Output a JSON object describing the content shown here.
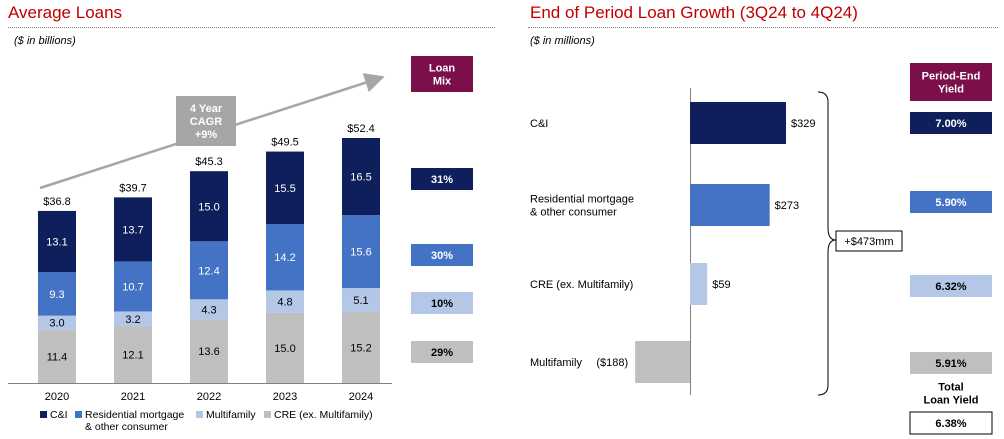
{
  "left": {
    "title": "Average Loans",
    "subtitle": "($ in billions)",
    "cagr_text": [
      "4 Year",
      "CAGR",
      "+9%"
    ],
    "mix_header": [
      "Loan",
      "Mix"
    ],
    "mix_values": [
      {
        "label": "31%",
        "color": "#0f1f5c"
      },
      {
        "label": "30%",
        "color": "#4472c4"
      },
      {
        "label": "10%",
        "color": "#b4c7e7"
      },
      {
        "label": "29%",
        "color": "#bfbfbf"
      }
    ],
    "legend": [
      {
        "label": "C&I",
        "color": "#0f1f5c"
      },
      {
        "label": [
          "Residential mortgage",
          "& other consumer"
        ],
        "color": "#4472c4"
      },
      {
        "label": "Multifamily",
        "color": "#b4c7e7"
      },
      {
        "label": "CRE (ex. Multifamily)",
        "color": "#bfbfbf"
      }
    ]
  },
  "right": {
    "title": "End of Period Loan Growth (3Q24 to 4Q24)",
    "subtitle": "($ in millions)",
    "yield_header": [
      "Period-End",
      "Yield"
    ],
    "total_change": "+$473mm",
    "yields": [
      {
        "label": "7.00%",
        "color": "#0f1f5c",
        "text": "#ffffff"
      },
      {
        "label": "5.90%",
        "color": "#4472c4",
        "text": "#ffffff"
      },
      {
        "label": "6.32%",
        "color": "#b4c7e7",
        "text": "#000000"
      },
      {
        "label": "5.91%",
        "color": "#bfbfbf",
        "text": "#000000"
      }
    ],
    "total_yield_label": [
      "Total",
      "Loan Yield"
    ],
    "total_yield_value": "6.38%"
  },
  "chart_data": [
    {
      "type": "bar",
      "stacked": true,
      "title": "Average Loans",
      "unit": "$ in billions",
      "categories": [
        "2020",
        "2021",
        "2022",
        "2023",
        "2024"
      ],
      "series": [
        {
          "name": "CRE (ex. Multifamily)",
          "color": "#bfbfbf",
          "text_color": "#000000",
          "values": [
            11.4,
            12.1,
            13.6,
            15.0,
            15.2
          ]
        },
        {
          "name": "Multifamily",
          "color": "#b4c7e7",
          "text_color": "#000000",
          "values": [
            3.0,
            3.2,
            4.3,
            4.8,
            5.1
          ]
        },
        {
          "name": "Residential mortgage & other consumer",
          "color": "#4472c4",
          "text_color": "#ffffff",
          "values": [
            9.3,
            10.7,
            12.4,
            14.2,
            15.6
          ]
        },
        {
          "name": "C&I",
          "color": "#0f1f5c",
          "text_color": "#ffffff",
          "values": [
            13.1,
            13.7,
            15.0,
            15.5,
            16.5
          ]
        }
      ],
      "totals": [
        "$36.8",
        "$39.7",
        "$45.3",
        "$49.5",
        "$52.4"
      ],
      "ylim": [
        0,
        52.4
      ]
    },
    {
      "type": "bar",
      "orientation": "horizontal",
      "title": "End of Period Loan Growth (3Q24 to 4Q24)",
      "unit": "$ in millions",
      "categories": [
        "C&I",
        "Residential mortgage & other consumer",
        "CRE (ex. Multifamily)",
        "Multifamily"
      ],
      "category_lines": [
        [
          "C&I"
        ],
        [
          "Residential mortgage",
          "& other consumer"
        ],
        [
          "CRE (ex. Multifamily)"
        ],
        [
          "Multifamily"
        ]
      ],
      "values": [
        329,
        273,
        59,
        -188
      ],
      "value_labels": [
        "$329",
        "$273",
        "$59",
        "($188)"
      ],
      "colors": [
        "#0f1f5c",
        "#4472c4",
        "#b4c7e7",
        "#bfbfbf"
      ]
    }
  ]
}
